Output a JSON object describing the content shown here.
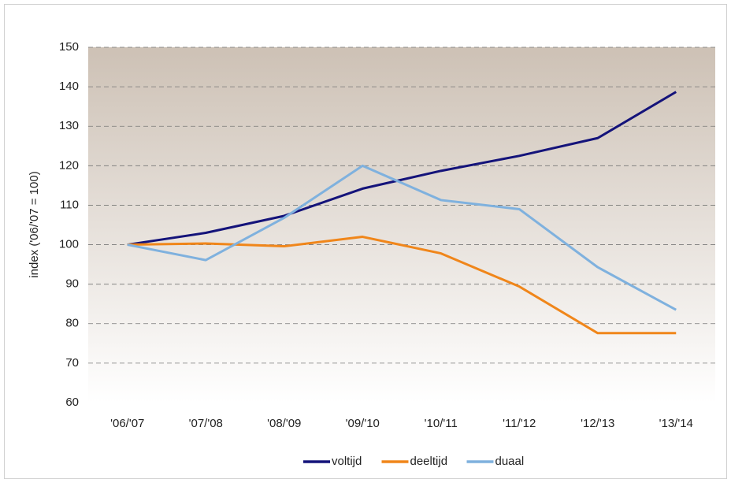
{
  "chart_data": {
    "type": "line",
    "y_label": "index ('06/'07 = 100)",
    "categories": [
      "'06/'07",
      "'07/'08",
      "'08/'09",
      "'09/'10",
      "'10/'11",
      "'11/'12",
      "'12/'13",
      "'13/'14"
    ],
    "series": [
      {
        "name": "voltijd",
        "color": "#14137a",
        "values": [
          100,
          103,
          107.3,
          114.2,
          118.7,
          122.5,
          127,
          138.7
        ]
      },
      {
        "name": "deeltijd",
        "color": "#f0861a",
        "values": [
          100,
          100.3,
          99.6,
          102,
          97.8,
          89.4,
          77.6,
          77.6
        ]
      },
      {
        "name": "duaal",
        "color": "#7fb1de",
        "values": [
          100,
          96.1,
          106.8,
          120,
          111.3,
          109,
          94.3,
          83.5
        ]
      }
    ],
    "ylim": [
      60,
      150
    ],
    "yticks": [
      60,
      70,
      80,
      90,
      100,
      110,
      120,
      130,
      140,
      150
    ],
    "grid": true,
    "legend": "bottom"
  }
}
